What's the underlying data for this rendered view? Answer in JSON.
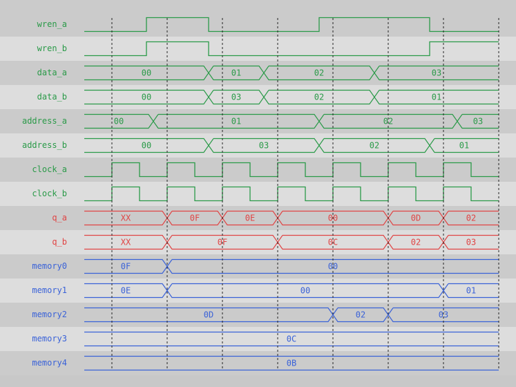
{
  "colors": {
    "control": "#2a9a48",
    "output": "#e04444",
    "memory": "#3a62d8",
    "band_dark": "#cbcbcb",
    "band_light": "#dddddd",
    "grid": "#222222"
  },
  "time_range": [
    0,
    15
  ],
  "clock_edges": [
    1,
    3,
    5,
    7,
    9,
    11,
    13,
    15
  ],
  "signals": [
    {
      "name": "wren_a",
      "kind": "bit",
      "color": "control",
      "init": 0,
      "toggles": [
        2.25,
        4.5,
        8.5,
        12.5
      ]
    },
    {
      "name": "wren_b",
      "kind": "bit",
      "color": "control",
      "init": 0,
      "toggles": [
        2.25,
        4.5,
        12.5
      ]
    },
    {
      "name": "data_a",
      "kind": "bus",
      "color": "control",
      "segments": [
        {
          "start": 0,
          "value": "00"
        },
        {
          "start": 4.5,
          "value": "01"
        },
        {
          "start": 6.5,
          "value": "02"
        },
        {
          "start": 10.5,
          "value": "03"
        }
      ]
    },
    {
      "name": "data_b",
      "kind": "bus",
      "color": "control",
      "segments": [
        {
          "start": 0,
          "value": "00"
        },
        {
          "start": 4.5,
          "value": "03"
        },
        {
          "start": 6.5,
          "value": "02"
        },
        {
          "start": 10.5,
          "value": "01"
        }
      ]
    },
    {
      "name": "address_a",
      "kind": "bus",
      "color": "control",
      "segments": [
        {
          "start": 0,
          "value": "00"
        },
        {
          "start": 2.5,
          "value": "01"
        },
        {
          "start": 8.5,
          "value": "02"
        },
        {
          "start": 13.5,
          "value": "03"
        }
      ]
    },
    {
      "name": "address_b",
      "kind": "bus",
      "color": "control",
      "segments": [
        {
          "start": 0,
          "value": "00"
        },
        {
          "start": 4.5,
          "value": "03"
        },
        {
          "start": 8.5,
          "value": "02"
        },
        {
          "start": 12.5,
          "value": "01"
        }
      ]
    },
    {
      "name": "clock_a",
      "kind": "bit",
      "color": "control",
      "init": 0,
      "toggles": [
        1,
        2,
        3,
        4,
        5,
        6,
        7,
        8,
        9,
        10,
        11,
        12,
        13,
        14
      ]
    },
    {
      "name": "clock_b",
      "kind": "bit",
      "color": "control",
      "init": 0,
      "toggles": [
        1,
        2,
        3,
        4,
        5,
        6,
        7,
        8,
        9,
        10,
        11,
        12,
        13,
        14
      ]
    },
    {
      "name": "q_a",
      "kind": "bus",
      "color": "output",
      "segments": [
        {
          "start": 0,
          "value": "XX"
        },
        {
          "start": 3,
          "value": "0F"
        },
        {
          "start": 5,
          "value": "0E"
        },
        {
          "start": 7,
          "value": "00"
        },
        {
          "start": 11,
          "value": "0D"
        },
        {
          "start": 13,
          "value": "02"
        }
      ]
    },
    {
      "name": "q_b",
      "kind": "bus",
      "color": "output",
      "segments": [
        {
          "start": 0,
          "value": "XX"
        },
        {
          "start": 3,
          "value": "0F"
        },
        {
          "start": 7,
          "value": "0C"
        },
        {
          "start": 11,
          "value": "02"
        },
        {
          "start": 13,
          "value": "03"
        }
      ]
    },
    {
      "name": "memory0",
      "kind": "bus",
      "color": "memory",
      "segments": [
        {
          "start": 0,
          "value": "0F"
        },
        {
          "start": 3,
          "value": "00"
        }
      ]
    },
    {
      "name": "memory1",
      "kind": "bus",
      "color": "memory",
      "segments": [
        {
          "start": 0,
          "value": "0E"
        },
        {
          "start": 3,
          "value": "00"
        },
        {
          "start": 13,
          "value": "01"
        }
      ]
    },
    {
      "name": "memory2",
      "kind": "bus",
      "color": "memory",
      "segments": [
        {
          "start": 0,
          "value": "0D"
        },
        {
          "start": 9,
          "value": "02"
        },
        {
          "start": 11,
          "value": "03"
        }
      ]
    },
    {
      "name": "memory3",
      "kind": "bus",
      "color": "memory",
      "segments": [
        {
          "start": 0,
          "value": "0C"
        }
      ]
    },
    {
      "name": "memory4",
      "kind": "bus",
      "color": "memory",
      "segments": [
        {
          "start": 0,
          "value": "0B"
        }
      ]
    }
  ]
}
